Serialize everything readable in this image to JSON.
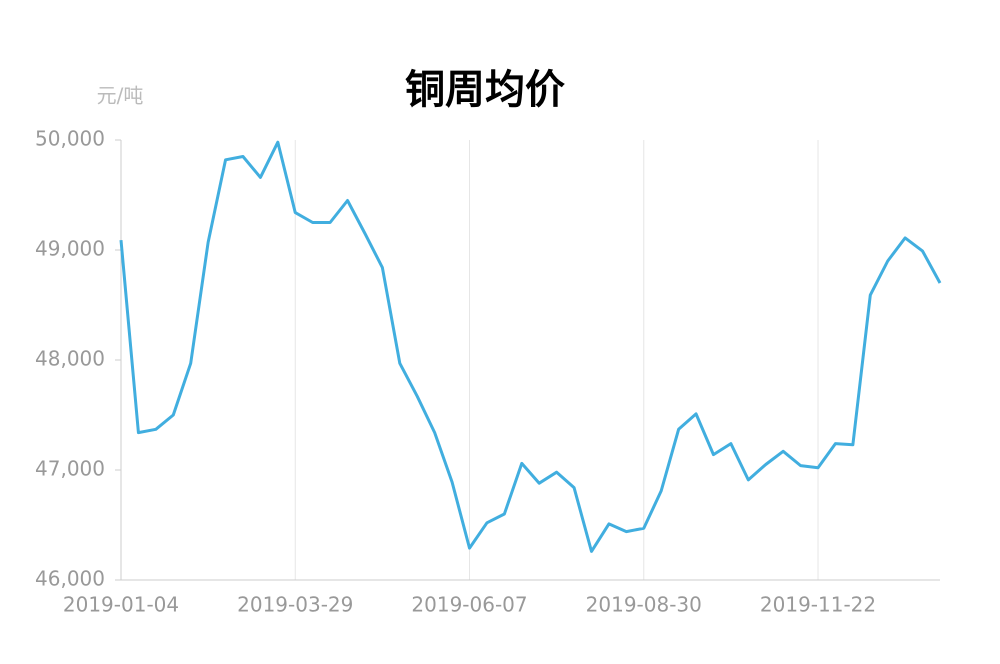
{
  "chart_data": {
    "type": "line",
    "title": "铜周均价",
    "y_label": "元/吨",
    "categories": [
      "2019-01-04",
      null,
      null,
      null,
      null,
      null,
      null,
      null,
      null,
      null,
      "2019-03-29",
      null,
      null,
      null,
      null,
      null,
      null,
      null,
      null,
      null,
      "2019-06-07",
      null,
      null,
      null,
      null,
      null,
      null,
      null,
      null,
      null,
      "2019-08-30",
      null,
      null,
      null,
      null,
      null,
      null,
      null,
      null,
      null,
      "2019-11-22",
      null,
      null,
      null,
      null,
      null,
      null,
      null
    ],
    "series": [
      {
        "name": "铜周均价",
        "color": "#41aedf",
        "values": [
          49090,
          47340,
          47370,
          47500,
          47970,
          49070,
          49820,
          49850,
          49660,
          49980,
          49340,
          49250,
          49250,
          49450,
          49150,
          48840,
          47970,
          47670,
          47340,
          46890,
          46290,
          46520,
          46600,
          47060,
          46880,
          46980,
          46840,
          46260,
          46510,
          46440,
          46470,
          46810,
          47370,
          47510,
          47140,
          47240,
          46910,
          47050,
          47170,
          47040,
          47020,
          47240,
          47230,
          48590,
          48900,
          49110,
          48990,
          48700
        ]
      }
    ],
    "ylim": [
      46000,
      50000
    ],
    "yticks": [
      {
        "value": 46000,
        "label": "46,000"
      },
      {
        "value": 47000,
        "label": "47,000"
      },
      {
        "value": 48000,
        "label": "48,000"
      },
      {
        "value": 49000,
        "label": "49,000"
      },
      {
        "value": 50000,
        "label": "50,000"
      }
    ],
    "grid": "x"
  }
}
